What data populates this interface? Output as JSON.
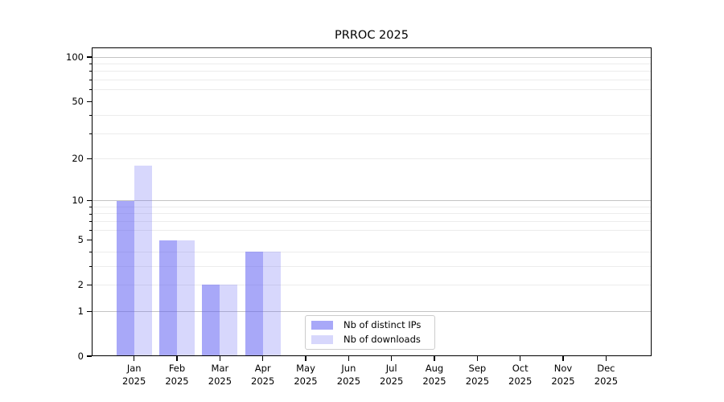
{
  "figure": {
    "title": "PRROC 2025"
  },
  "chart_data": {
    "type": "bar",
    "title": "PRROC 2025",
    "x_categories": [
      {
        "month": "Jan",
        "year": "2025"
      },
      {
        "month": "Feb",
        "year": "2025"
      },
      {
        "month": "Mar",
        "year": "2025"
      },
      {
        "month": "Apr",
        "year": "2025"
      },
      {
        "month": "May",
        "year": "2025"
      },
      {
        "month": "Jun",
        "year": "2025"
      },
      {
        "month": "Jul",
        "year": "2025"
      },
      {
        "month": "Aug",
        "year": "2025"
      },
      {
        "month": "Sep",
        "year": "2025"
      },
      {
        "month": "Oct",
        "year": "2025"
      },
      {
        "month": "Nov",
        "year": "2025"
      },
      {
        "month": "Dec",
        "year": "2025"
      }
    ],
    "series": [
      {
        "name": "Nb of distinct IPs",
        "color": "rgba(96,96,242,0.55)",
        "values": [
          10,
          5,
          2,
          4,
          0,
          0,
          0,
          0,
          0,
          0,
          0,
          0
        ]
      },
      {
        "name": "Nb of downloads",
        "color": "rgba(96,96,242,0.25)",
        "values": [
          18,
          5,
          2,
          4,
          0,
          0,
          0,
          0,
          0,
          0,
          0,
          0
        ]
      }
    ],
    "y_axis": {
      "scale": "log10(1+v)",
      "ticks": [
        0,
        1,
        2,
        5,
        10,
        20,
        50,
        100
      ],
      "major_grid_values": [
        1,
        10,
        100
      ],
      "minor_grid_values": [
        2,
        3,
        4,
        6,
        7,
        8,
        9,
        20,
        30,
        40,
        60,
        70,
        80,
        90
      ],
      "minor_tick_values": [
        3,
        4,
        6,
        7,
        8,
        9,
        30,
        40,
        60,
        70,
        80,
        90
      ],
      "ylim": [
        0,
        116
      ]
    },
    "legend": {
      "position": "lower center"
    },
    "grid": true
  }
}
